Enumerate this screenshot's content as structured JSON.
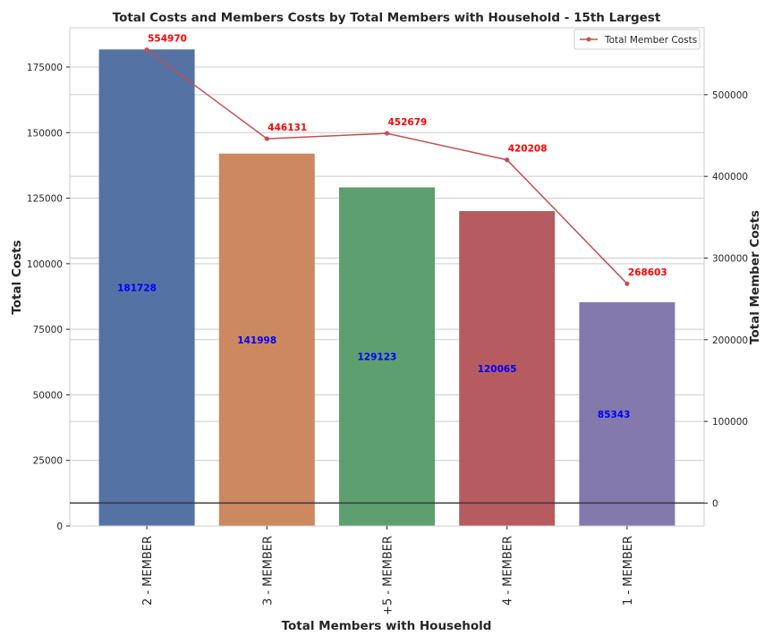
{
  "chart_data": {
    "type": "bar",
    "title": "Total Costs and Members Costs by Total Members with Household - 15th Largest",
    "xlabel": "Total Members with Household",
    "ylabel": "Total Costs",
    "ylabel_right": "Total Member Costs",
    "categories": [
      "2 - MEMBER",
      "3 - MEMBER",
      "+5 - MEMBER",
      "4 - MEMBER",
      "1 - MEMBER"
    ],
    "series": [
      {
        "type": "bar",
        "axis": "left",
        "values": [
          181728,
          141998,
          129123,
          120065,
          85343
        ],
        "colors": [
          "#5572a5",
          "#cc885f",
          "#5d9f6e",
          "#b65c60",
          "#8479ad"
        ]
      },
      {
        "type": "line",
        "axis": "right",
        "name": "Total Member Costs",
        "values": [
          554970,
          446131,
          452679,
          420208,
          268603
        ],
        "color": "#c44e52"
      }
    ],
    "ylim_left": [
      0,
      190000
    ],
    "ylim_right": [
      -28000,
      582000
    ],
    "yticks_left": [
      0,
      25000,
      50000,
      75000,
      100000,
      125000,
      150000,
      175000
    ],
    "yticks_right": [
      0,
      100000,
      200000,
      300000,
      400000,
      500000
    ],
    "bar_value_labels": [
      "181728",
      "141998",
      "129123",
      "120065",
      "85343"
    ],
    "line_value_labels": [
      "554970",
      "446131",
      "452679",
      "420208",
      "268603"
    ],
    "legend": {
      "position": "top-right",
      "entries": [
        "Total Member Costs"
      ]
    },
    "grid": true,
    "horizontal_reference_line": 0
  }
}
